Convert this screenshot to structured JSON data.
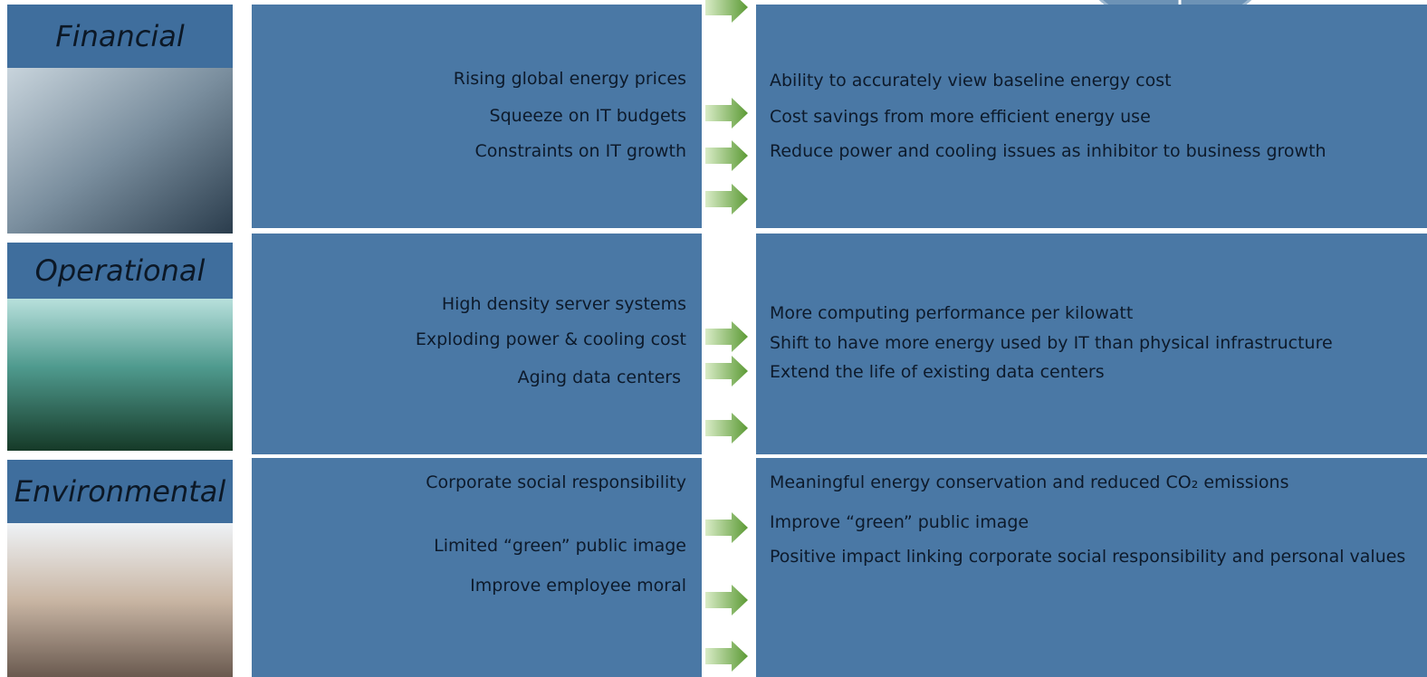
{
  "rows": [
    {
      "label": "Financial",
      "causes": [
        "Rising global energy prices",
        "Squeeze on IT budgets",
        "Constraints on IT growth"
      ],
      "benefits": [
        "Ability to accurately view baseline energy cost",
        "Cost savings from more efficient energy use",
        "Reduce power and cooling issues as inhibitor to business growth"
      ]
    },
    {
      "label": "Operational",
      "causes": [
        "High density server systems",
        "Exploding power & cooling cost",
        "Aging data centers"
      ],
      "benefits": [
        "More computing performance per kilowatt",
        "Shift to have more energy used by IT than physical infrastructure",
        "Extend the life of existing data centers"
      ]
    },
    {
      "label": "Environmental",
      "causes": [
        "Corporate social responsibility",
        "Limited “green” public image",
        "Improve employee moral"
      ],
      "benefits": [
        "Meaningful energy conservation and reduced CO₂ emissions",
        "Improve “green” public image",
        "Positive impact linking corporate social responsibility and personal values"
      ]
    }
  ]
}
